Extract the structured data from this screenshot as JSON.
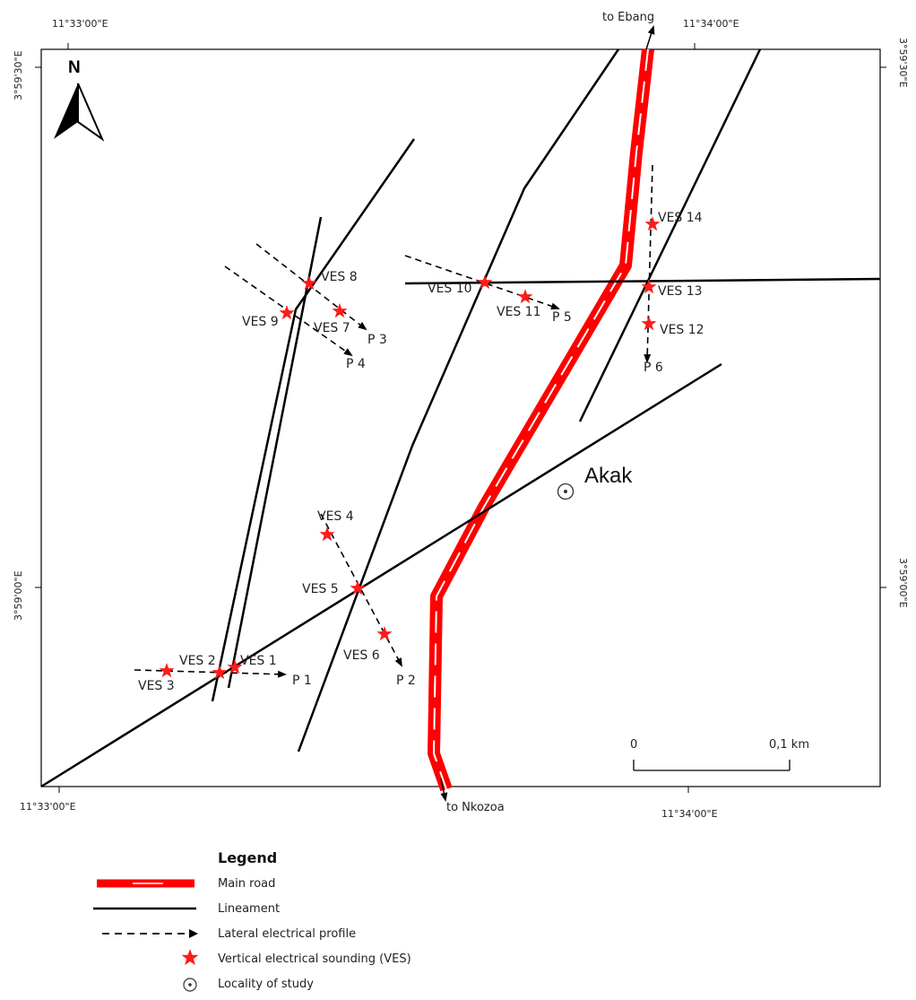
{
  "coordinates": {
    "top_left": "11°33'00\"E",
    "top_right": "11°34'00\"E",
    "bottom_left": "11°33'00\"E",
    "bottom_right": "11°34'00\"E",
    "left_top": "3°59'30\"E",
    "left_bottom": "3°59'00\"E",
    "right_top": "3°59'30\"E",
    "right_bottom": "3°59'00\"E"
  },
  "north_label": "N",
  "roads": {
    "north_destination": "to Ebang",
    "south_destination": "to Nkozoa"
  },
  "locality": "Akak",
  "ves": {
    "v1": "VES 1",
    "v2": "VES 2",
    "v3": "VES 3",
    "v4": "VES 4",
    "v5": "VES 5",
    "v6": "VES 6",
    "v7": "VES 7",
    "v8": "VES 8",
    "v9": "VES 9",
    "v10": "VES 10",
    "v11": "VES 11",
    "v12": "VES 12",
    "v13": "VES 13",
    "v14": "VES 14"
  },
  "profiles": {
    "p1": "P 1",
    "p2": "P 2",
    "p3": "P 3",
    "p4": "P 4",
    "p5": "P 5",
    "p6": "P 6"
  },
  "scale_bar": {
    "start": "0",
    "end": "0,1 km"
  },
  "legend": {
    "title": "Legend",
    "main_road": "Main road",
    "lineament": "Lineament",
    "lateral_profile": "Lateral electrical profile",
    "ves": "Vertical electrical sounding (VES)",
    "locality": "Locality of study"
  },
  "colors": {
    "road": "#ff0000",
    "ves_star": "#ff1a1a",
    "lineament": "#000000"
  }
}
